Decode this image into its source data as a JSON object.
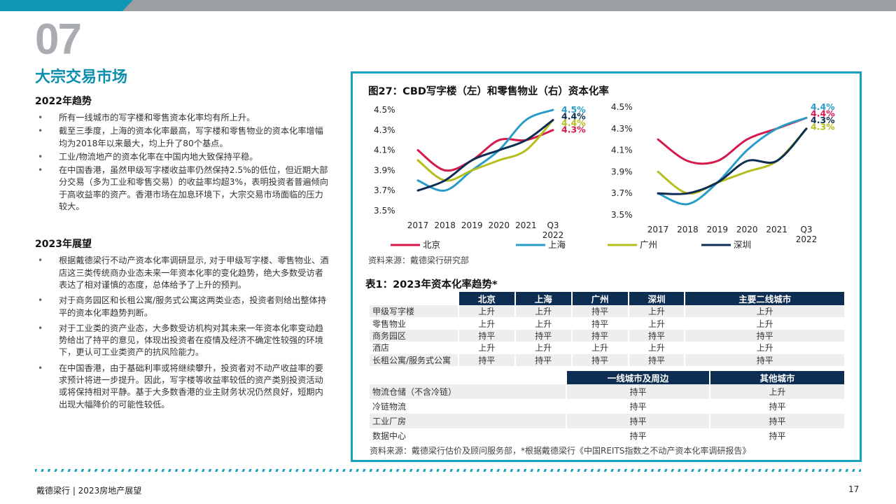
{
  "header": {
    "section_number": "07",
    "section_title": "大宗交易市场"
  },
  "trends_2022": {
    "heading": "2022年趋势",
    "bullets": [
      "所有一线城市的写字楼和零售资本化率均有所上升。",
      "截至三季度，上海的资本化率最高，写字楼和零售物业的资本化率增幅均为2018年以来最大，均上升了80个基点。",
      "工业/物流地产的资本化率在中国内地大致保持平稳。",
      "在中国香港，虽然甲级写字楼收益率仍然保持2.5%的低位，但近期大部分交易（多为工业和零售交易）的收益率均超3%，表明投资者普遍倾向于高收益率的资产。香港市场在加息环境下，大宗交易市场面临的压力较大。"
    ]
  },
  "outlook_2023": {
    "heading": "2023年展望",
    "bullets": [
      "根据戴德梁行不动产资本化率调研显示, 对于甲级写字楼、零售物业、酒店这三类传统商办业态未来一年资本化率的变化趋势，绝大多数受访者表达了相对谨慎的态度，总体给予了上升的预判。",
      "对于商务园区和长租公寓/服务式公寓这两类业态，投资者则给出整体持平的资本化率趋势判断。",
      "对于工业类的资产业态，大多数受访机构对其未来一年资本化率变动趋势给出了持平的意见，体现出投资者在疫情及经济不确定性较强的环境下，更认可工业类资产的抗风险能力。",
      "在中国香港，由于基础利率或将继续攀升，投资者对不动产收益率的要求预计将进一步提升。因此，写字楼等收益率较低的资产类别投资活动或将保持相对平静。基于大多数香港的业主财务状况仍然良好，短期内出现大幅降价的可能性较低。"
    ]
  },
  "figure": {
    "title": "图27：CBD写字楼（左）和零售物业（右）资本化率",
    "source": "资料来源：戴德梁行研究部"
  },
  "chart_data": [
    {
      "type": "line",
      "title": "CBD写字楼",
      "categories": [
        "2017",
        "2018",
        "2019",
        "2020",
        "2021",
        "Q3 2022"
      ],
      "ylim": [
        3.5,
        4.5
      ],
      "yticks": [
        "3.5%",
        "3.7%",
        "3.9%",
        "4.1%",
        "4.3%",
        "4.5%"
      ],
      "series": [
        {
          "name": "北京",
          "color": "#d6194b",
          "values": [
            4.1,
            3.9,
            4.0,
            4.2,
            4.2,
            4.3
          ],
          "end_label": "4.3%"
        },
        {
          "name": "上海",
          "color": "#2a9cc8",
          "values": [
            3.8,
            3.7,
            3.9,
            4.1,
            4.4,
            4.5
          ],
          "end_label": "4.5%"
        },
        {
          "name": "广州",
          "color": "#b5be1c",
          "values": [
            4.0,
            3.8,
            3.9,
            4.0,
            4.1,
            4.4
          ],
          "end_label": "4.4%"
        },
        {
          "name": "深圳",
          "color": "#0d2d52",
          "values": [
            3.7,
            3.8,
            4.0,
            4.1,
            4.2,
            4.4
          ],
          "end_label": "4.4%"
        }
      ]
    },
    {
      "type": "line",
      "title": "零售物业",
      "categories": [
        "2017",
        "2018",
        "2019",
        "2020",
        "2021",
        "Q3 2022"
      ],
      "ylim": [
        3.5,
        4.5
      ],
      "yticks": [
        "3.5%",
        "3.7%",
        "3.9%",
        "4.1%",
        "4.3%",
        "4.5%"
      ],
      "series": [
        {
          "name": "北京",
          "color": "#d6194b",
          "values": [
            4.2,
            4.0,
            4.0,
            4.2,
            4.3,
            4.4
          ],
          "end_label": "4.4%"
        },
        {
          "name": "上海",
          "color": "#2a9cc8",
          "values": [
            3.7,
            3.6,
            3.8,
            4.1,
            4.3,
            4.4
          ],
          "end_label": "4.4%"
        },
        {
          "name": "广州",
          "color": "#b5be1c",
          "values": [
            3.9,
            3.7,
            3.8,
            3.9,
            4.0,
            4.3
          ],
          "end_label": "4.3%"
        },
        {
          "name": "深圳",
          "color": "#0d2d52",
          "values": [
            3.7,
            3.7,
            3.8,
            4.0,
            4.0,
            4.3
          ],
          "end_label": "4.3%"
        }
      ]
    }
  ],
  "table1": {
    "title": "表1：2023年资本化率趋势*",
    "headers": [
      "北京",
      "上海",
      "广州",
      "深圳",
      "主要二线城市"
    ],
    "rows": [
      {
        "label": "甲级写字楼",
        "values": [
          "上升",
          "上升",
          "持平",
          "上升",
          "上升"
        ]
      },
      {
        "label": "零售物业",
        "values": [
          "上升",
          "上升",
          "持平",
          "上升",
          "上升"
        ]
      },
      {
        "label": "商务园区",
        "values": [
          "持平",
          "持平",
          "持平",
          "持平",
          "持平"
        ]
      },
      {
        "label": "酒店",
        "values": [
          "上升",
          "上升",
          "上升",
          "上升",
          "上升"
        ]
      },
      {
        "label": "长租公寓/服务式公寓",
        "values": [
          "持平",
          "持平",
          "持平",
          "持平",
          "持平"
        ]
      }
    ]
  },
  "table2": {
    "headers": [
      "一线城市及周边",
      "其他城市"
    ],
    "rows": [
      {
        "label": "物流仓储（不含冷链）",
        "values": [
          "持平",
          "上升"
        ]
      },
      {
        "label": "冷链物流",
        "values": [
          "持平",
          "持平"
        ]
      },
      {
        "label": "工业厂房",
        "values": [
          "持平",
          "持平"
        ]
      },
      {
        "label": "数据中心",
        "values": [
          "持平",
          "持平"
        ]
      }
    ]
  },
  "table_source": "资料来源：戴德梁行估价及顾问服务部，*根据戴德梁行《中国REITS指数之不动产资本化率调研报告》",
  "footer": {
    "left": "戴德梁行 | 2023房地产展望",
    "page_number": "17"
  },
  "colors": {
    "accent": "#0b8ead",
    "navy": "#0d2d52",
    "panel_border": "#14a3bf"
  }
}
